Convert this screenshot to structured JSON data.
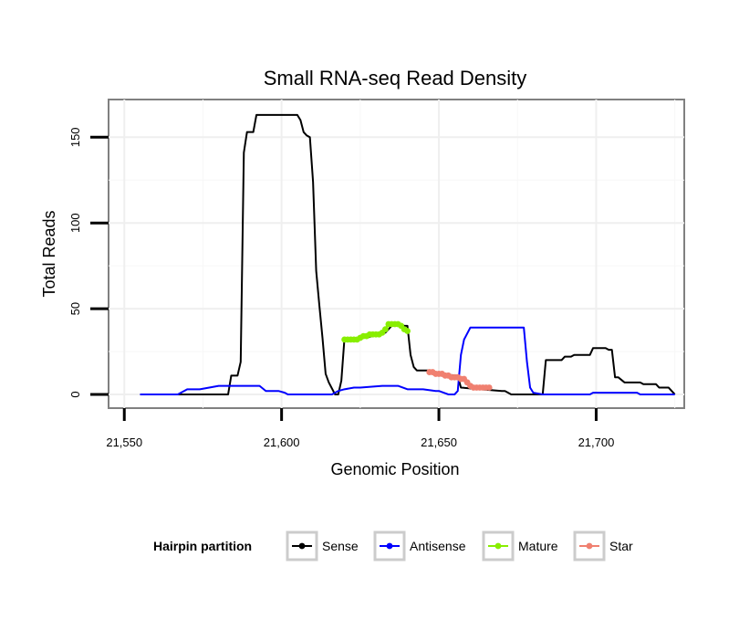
{
  "chart_data": {
    "type": "line",
    "title": "Small RNA-seq Read Density",
    "xlabel": "Genomic Position",
    "ylabel": "Total Reads",
    "xlim": [
      21545,
      21728
    ],
    "ylim": [
      -8,
      172
    ],
    "x_ticks": [
      21550,
      21600,
      21650,
      21700
    ],
    "x_tick_labels": [
      "21,550",
      "21,600",
      "21,650",
      "21,700"
    ],
    "y_ticks": [
      0,
      50,
      100,
      150
    ],
    "y_tick_labels": [
      "0",
      "50",
      "100",
      "150"
    ],
    "grid": true,
    "legend": {
      "title": "Hairpin partition",
      "position": "bottom"
    },
    "series": [
      {
        "name": "Sense",
        "color": "#000000",
        "markers": false,
        "x": [
          21555,
          21557,
          21583,
          21584,
          21586,
          21587,
          21588,
          21589,
          21591,
          21592,
          21605,
          21606,
          21607,
          21608,
          21609,
          21610,
          21611,
          21612,
          21613,
          21614,
          21615,
          21617,
          21618,
          21619,
          21620,
          21621,
          21626,
          21627,
          21632,
          21633,
          21635,
          21636,
          21638,
          21639,
          21640,
          21641,
          21642,
          21643,
          21644,
          21648,
          21649,
          21656,
          21657,
          21670,
          21671,
          21673,
          21674,
          21676,
          21683,
          21684,
          21689,
          21690,
          21692,
          21693,
          21698,
          21699,
          21703,
          21704,
          21705,
          21706,
          21707,
          21709,
          21710,
          21714,
          21715,
          21719,
          21720,
          21722,
          21723,
          21724,
          21725
        ],
        "y": [
          0,
          0,
          0,
          11,
          11,
          19,
          141,
          153,
          153,
          163,
          163,
          160,
          153,
          151,
          150,
          124,
          72,
          52,
          33,
          12,
          7,
          0,
          0,
          8,
          33,
          33,
          33,
          33,
          36,
          36,
          40,
          40,
          41,
          40,
          40,
          23,
          16,
          14,
          14,
          14,
          12,
          11,
          4,
          2,
          2,
          0,
          0,
          0,
          0,
          20,
          20,
          22,
          22,
          23,
          23,
          27,
          27,
          26,
          26,
          10,
          10,
          7,
          7,
          7,
          6,
          6,
          4,
          4,
          4,
          2,
          0
        ]
      },
      {
        "name": "Antisense",
        "color": "#0000ff",
        "markers": false,
        "x": [
          21555,
          21567,
          21570,
          21574,
          21577,
          21580,
          21593,
          21595,
          21599,
          21601,
          21602,
          21604,
          21616,
          21618,
          21620,
          21623,
          21625,
          21632,
          21637,
          21640,
          21645,
          21649,
          21650,
          21653,
          21655,
          21656,
          21657,
          21658,
          21660,
          21677,
          21678,
          21679,
          21680,
          21683,
          21684,
          21698,
          21699,
          21713,
          21714,
          21725
        ],
        "y": [
          0,
          0,
          3,
          3,
          4,
          5,
          5,
          2,
          2,
          1,
          0,
          0,
          0,
          2,
          3,
          4,
          4,
          5,
          5,
          3,
          3,
          2,
          2,
          0,
          0,
          2,
          23,
          32,
          39,
          39,
          19,
          4,
          1,
          0,
          0,
          0,
          1,
          1,
          0,
          0
        ]
      },
      {
        "name": "Mature",
        "color": "#88ee00",
        "markers": true,
        "x": [
          21620,
          21621,
          21622,
          21623,
          21624,
          21625,
          21626,
          21627,
          21628,
          21629,
          21630,
          21631,
          21632,
          21633,
          21634,
          21635,
          21636,
          21637,
          21638,
          21639,
          21640
        ],
        "y": [
          32,
          32,
          32,
          32,
          32,
          33,
          34,
          34,
          35,
          35,
          35,
          35,
          36,
          38,
          41,
          41,
          41,
          41,
          40,
          38,
          37
        ]
      },
      {
        "name": "Star",
        "color": "#f08070",
        "markers": true,
        "x": [
          21647,
          21648,
          21649,
          21650,
          21651,
          21652,
          21653,
          21654,
          21655,
          21656,
          21657,
          21658,
          21659,
          21660,
          21661,
          21662,
          21663,
          21664,
          21665,
          21666
        ],
        "y": [
          13,
          13,
          12,
          12,
          12,
          11,
          11,
          10,
          10,
          10,
          9,
          9,
          7,
          5,
          4,
          4,
          4,
          4,
          4,
          4
        ]
      }
    ]
  }
}
